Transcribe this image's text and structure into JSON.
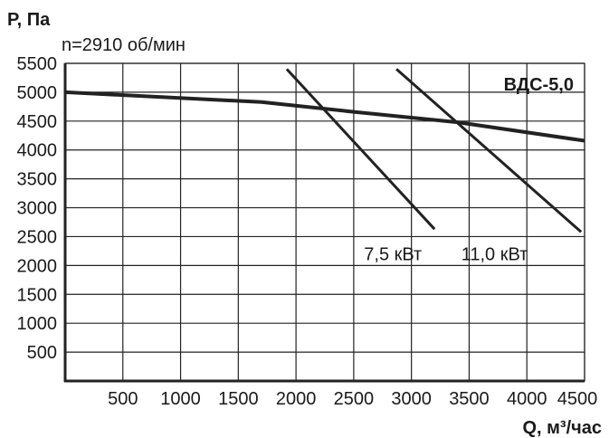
{
  "chart_data": {
    "type": "line",
    "title": "ВДС-5,0",
    "subtitle": "n=2910 об/мин",
    "ylabel": "Р, Па",
    "xlabel": "Q, м³/час",
    "xlim": [
      0,
      4500
    ],
    "ylim": [
      0,
      5500
    ],
    "x_ticks": [
      500,
      1000,
      1500,
      2000,
      2500,
      3000,
      3500,
      4000,
      4500
    ],
    "y_ticks": [
      500,
      1000,
      1500,
      2000,
      2500,
      3000,
      3500,
      4000,
      4500,
      5000,
      5500
    ],
    "grid": true,
    "series": [
      {
        "role": "fan-curve",
        "x": [
          0,
          1700,
          2500,
          3400,
          4500
        ],
        "y": [
          5000,
          4830,
          4660,
          4480,
          4160
        ]
      },
      {
        "name": "7,5 кВт",
        "role": "power-line",
        "x": [
          1920,
          3200
        ],
        "y": [
          5400,
          2630
        ]
      },
      {
        "name": "11,0 кВт",
        "role": "power-line",
        "x": [
          2870,
          4470
        ],
        "y": [
          5400,
          2580
        ]
      }
    ],
    "annotations": [
      {
        "text": "7,5 кВт",
        "x": 2840,
        "y": 2200
      },
      {
        "text": "11,0 кВт",
        "x": 3720,
        "y": 2200
      }
    ],
    "colors": {
      "curve": "#222222",
      "grid": "#222222",
      "text": "#1a1a1a",
      "background": "#ffffff"
    }
  }
}
